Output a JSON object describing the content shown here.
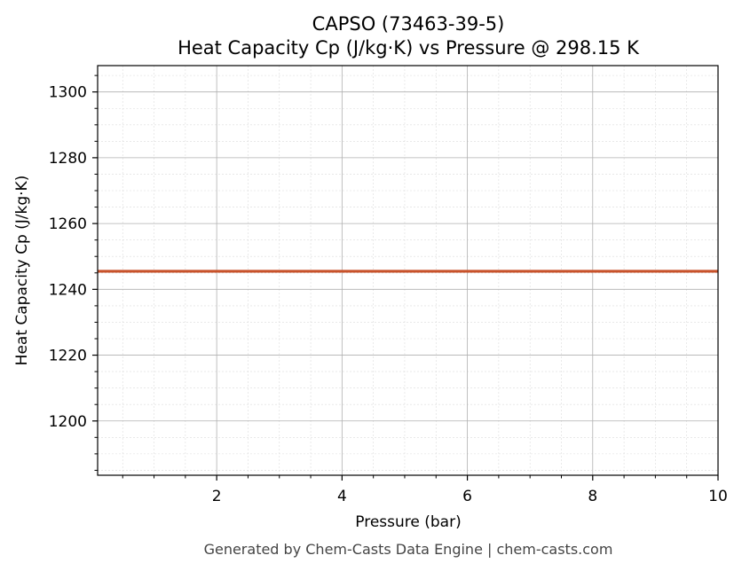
{
  "chart_data": {
    "type": "line",
    "title": "CAPSO (73463-39-5)",
    "subtitle": "Heat Capacity Cp (J/kg·K) vs Pressure @ 298.15 K",
    "xlabel": "Pressure (bar)",
    "ylabel": "Heat Capacity Cp (J/kg·K)",
    "xlim": [
      0.1,
      10
    ],
    "ylim": [
      1183.5,
      1308
    ],
    "xticks": [
      2,
      4,
      6,
      8,
      10
    ],
    "xtick_labels": [
      "2",
      "4",
      "6",
      "8",
      "10"
    ],
    "yticks": [
      1200,
      1220,
      1240,
      1260,
      1280,
      1300
    ],
    "ytick_labels": [
      "1200",
      "1220",
      "1240",
      "1260",
      "1280",
      "1300"
    ],
    "grid": true,
    "series": [
      {
        "x": [
          0.1,
          10
        ],
        "y": [
          1245.5,
          1245.5
        ],
        "color": "#c8522a"
      }
    ]
  },
  "footer": "Generated by Chem-Casts Data Engine | chem-casts.com"
}
